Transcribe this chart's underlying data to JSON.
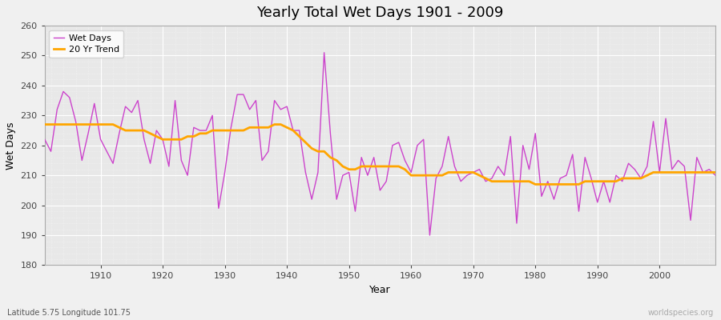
{
  "title": "Yearly Total Wet Days 1901 - 2009",
  "xlabel": "Year",
  "ylabel": "Wet Days",
  "subtitle": "Latitude 5.75 Longitude 101.75",
  "watermark": "worldspecies.org",
  "ylim": [
    180,
    260
  ],
  "xlim": [
    1901,
    2009
  ],
  "yticks": [
    180,
    190,
    200,
    210,
    220,
    230,
    240,
    250,
    260
  ],
  "xticks": [
    1910,
    1920,
    1930,
    1940,
    1950,
    1960,
    1970,
    1980,
    1990,
    2000
  ],
  "wet_days_color": "#CC44CC",
  "trend_color": "#FFA500",
  "bg_color": "#F0F0F0",
  "plot_bg_color": "#E8E8E8",
  "legend_wet": "Wet Days",
  "legend_trend": "20 Yr Trend",
  "years": [
    1901,
    1902,
    1903,
    1904,
    1905,
    1906,
    1907,
    1908,
    1909,
    1910,
    1911,
    1912,
    1913,
    1914,
    1915,
    1916,
    1917,
    1918,
    1919,
    1920,
    1921,
    1922,
    1923,
    1924,
    1925,
    1926,
    1927,
    1928,
    1929,
    1930,
    1931,
    1932,
    1933,
    1934,
    1935,
    1936,
    1937,
    1938,
    1939,
    1940,
    1941,
    1942,
    1943,
    1944,
    1945,
    1946,
    1947,
    1948,
    1949,
    1950,
    1951,
    1952,
    1953,
    1954,
    1955,
    1956,
    1957,
    1958,
    1959,
    1960,
    1961,
    1962,
    1963,
    1964,
    1965,
    1966,
    1967,
    1968,
    1969,
    1970,
    1971,
    1972,
    1973,
    1974,
    1975,
    1976,
    1977,
    1978,
    1979,
    1980,
    1981,
    1982,
    1983,
    1984,
    1985,
    1986,
    1987,
    1988,
    1989,
    1990,
    1991,
    1992,
    1993,
    1994,
    1995,
    1996,
    1997,
    1998,
    1999,
    2000,
    2001,
    2002,
    2003,
    2004,
    2005,
    2006,
    2007,
    2008,
    2009
  ],
  "wet_days": [
    222,
    218,
    232,
    238,
    236,
    228,
    215,
    224,
    234,
    222,
    218,
    214,
    224,
    233,
    231,
    235,
    222,
    214,
    225,
    222,
    213,
    235,
    215,
    210,
    226,
    225,
    225,
    230,
    199,
    211,
    226,
    237,
    237,
    232,
    235,
    215,
    218,
    235,
    232,
    233,
    225,
    225,
    211,
    202,
    211,
    251,
    224,
    202,
    210,
    211,
    198,
    216,
    210,
    216,
    205,
    208,
    220,
    221,
    215,
    211,
    220,
    222,
    190,
    209,
    213,
    223,
    213,
    208,
    210,
    211,
    212,
    208,
    209,
    213,
    210,
    223,
    194,
    220,
    212,
    224,
    203,
    208,
    202,
    209,
    210,
    217,
    198,
    216,
    209,
    201,
    208,
    201,
    210,
    208,
    214,
    212,
    209,
    213,
    228,
    211,
    229,
    212,
    215,
    213,
    195,
    216,
    211,
    212,
    210
  ],
  "trend_values": [
    227,
    227,
    227,
    227,
    227,
    227,
    227,
    227,
    227,
    227,
    227,
    227,
    226,
    225,
    225,
    225,
    225,
    224,
    223,
    222,
    222,
    222,
    222,
    223,
    223,
    224,
    224,
    225,
    225,
    225,
    225,
    225,
    225,
    226,
    226,
    226,
    226,
    227,
    227,
    226,
    225,
    223,
    221,
    219,
    218,
    218,
    216,
    215,
    213,
    212,
    212,
    213,
    213,
    213,
    213,
    213,
    213,
    213,
    212,
    210,
    210,
    210,
    210,
    210,
    210,
    211,
    211,
    211,
    211,
    211,
    210,
    209,
    208,
    208,
    208,
    208,
    208,
    208,
    208,
    207,
    207,
    207,
    207,
    207,
    207,
    207,
    207,
    208,
    208,
    208,
    208,
    208,
    208,
    209,
    209,
    209,
    209,
    210,
    211,
    211,
    211,
    211,
    211,
    211,
    211,
    211,
    211,
    211,
    211
  ]
}
